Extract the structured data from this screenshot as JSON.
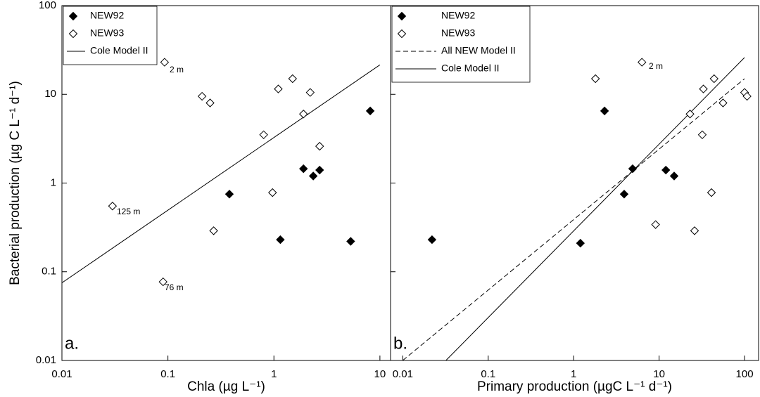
{
  "chart_data": [
    {
      "type": "scatter",
      "panel_label": "a.",
      "log": true,
      "xlabel": "Chla (µg L⁻¹)",
      "ylabel": "Bacterial production (µg C L⁻¹ d⁻¹)",
      "xlim": [
        0.01,
        12.6
      ],
      "ylim": [
        0.01,
        100
      ],
      "xticks": [
        0.01,
        0.1,
        1,
        10
      ],
      "yticks": [
        0.01,
        0.1,
        1,
        10,
        100
      ],
      "ytick_labels": true,
      "legend": "upper left",
      "series": [
        {
          "name": "NEW92",
          "marker": "filled-diamond",
          "color": "#000000",
          "x": [
            8.1,
            1.9,
            2.35,
            2.7,
            0.38,
            1.15,
            5.3
          ],
          "values": [
            6.5,
            1.45,
            1.2,
            1.4,
            0.75,
            0.23,
            0.22
          ]
        },
        {
          "name": "NEW93",
          "marker": "open-diamond",
          "color": "#000000",
          "x": [
            0.093,
            0.21,
            0.25,
            1.1,
            1.5,
            2.2,
            1.9,
            0.8,
            2.7,
            0.97,
            0.27,
            0.03,
            0.09
          ],
          "values": [
            23,
            9.5,
            8,
            11.5,
            15,
            10.5,
            6,
            3.5,
            2.6,
            0.78,
            0.29,
            0.55,
            0.077
          ]
        },
        {
          "name": "Cole Model II",
          "marker": "solid-line",
          "color": "#000000",
          "x": [
            0.01,
            10
          ],
          "values": [
            0.075,
            21.5
          ]
        }
      ],
      "annotations": [
        "2 m",
        "125 m",
        "76 m"
      ]
    },
    {
      "type": "scatter",
      "panel_label": "b.",
      "log": true,
      "xlabel": "Primary production (µgC L⁻¹ d⁻¹)",
      "xlim": [
        0.0072,
        146
      ],
      "ylim": [
        0.01,
        100
      ],
      "xticks": [
        0.01,
        0.1,
        1,
        10,
        100
      ],
      "yticks": [
        0.01,
        0.1,
        1,
        10,
        100
      ],
      "ytick_labels": false,
      "legend": "upper left",
      "series": [
        {
          "name": "NEW92",
          "marker": "filled-diamond",
          "color": "#000000",
          "x": [
            0.022,
            1.2,
            2.3,
            4.9,
            3.9,
            12,
            15
          ],
          "values": [
            0.23,
            0.21,
            6.5,
            1.45,
            0.75,
            1.4,
            1.2
          ]
        },
        {
          "name": "NEW93",
          "marker": "open-diamond",
          "color": "#000000",
          "x": [
            1.8,
            6.3,
            23,
            33,
            44,
            56,
            100,
            107,
            32,
            41,
            9.1,
            26
          ],
          "values": [
            15,
            23,
            6,
            11.5,
            15,
            8,
            10.5,
            9.5,
            3.5,
            0.78,
            0.34,
            0.29
          ]
        },
        {
          "name": "All NEW Model II",
          "marker": "dashed-line",
          "color": "#000000",
          "x": [
            0.01,
            100
          ],
          "values": [
            0.01,
            15
          ]
        },
        {
          "name": "Cole Model II",
          "marker": "solid-line",
          "color": "#000000",
          "x": [
            0.032,
            100
          ],
          "values": [
            0.01,
            26
          ]
        }
      ],
      "annotations": [
        "2 m"
      ]
    }
  ]
}
